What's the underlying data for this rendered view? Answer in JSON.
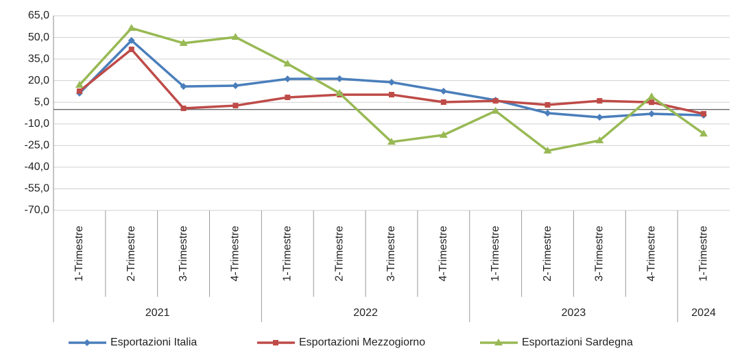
{
  "chart_data": {
    "type": "line",
    "category_groups": [
      {
        "name": "2021",
        "categories": [
          "1-Trimestre",
          "2-Trimestre",
          "3-Trimestre",
          "4-Trimestre"
        ]
      },
      {
        "name": "2022",
        "categories": [
          "1-Trimestre",
          "2-Trimestre",
          "3-Trimestre",
          "4-Trimestre"
        ]
      },
      {
        "name": "2023",
        "categories": [
          "1-Trimestre",
          "2-Trimestre",
          "3-Trimestre",
          "4-Trimestre"
        ]
      },
      {
        "name": "2024",
        "categories": [
          "1-Trimestre"
        ]
      }
    ],
    "series": [
      {
        "name": "Esportazioni Italia",
        "color": "#4a7ebb",
        "marker": "diamond",
        "values": [
          11.3,
          47.9,
          16.0,
          16.5,
          21.2,
          21.3,
          18.9,
          12.7,
          6.5,
          -2.5,
          -5.4,
          -3.0,
          -4.0
        ]
      },
      {
        "name": "Esportazioni Mezzogiorno",
        "color": "#be4b48",
        "marker": "square",
        "values": [
          12.7,
          41.7,
          0.8,
          2.7,
          8.4,
          10.3,
          10.3,
          5.1,
          6.0,
          3.2,
          6.0,
          5.0,
          -3.0
        ]
      },
      {
        "name": "Esportazioni Sardegna",
        "color": "#98b954",
        "marker": "triangle",
        "values": [
          17.0,
          56.4,
          46.0,
          50.2,
          31.7,
          11.3,
          -22.5,
          -17.7,
          -1.0,
          -28.6,
          -21.5,
          8.9,
          -16.8
        ]
      }
    ],
    "ylim": [
      -70,
      65
    ],
    "yticks": [
      {
        "value": 65,
        "label": "65,0"
      },
      {
        "value": 50,
        "label": "50,0"
      },
      {
        "value": 35,
        "label": "35,0"
      },
      {
        "value": 20,
        "label": "20,0"
      },
      {
        "value": 5,
        "label": "5,0"
      },
      {
        "value": -10,
        "label": "-10,0"
      },
      {
        "value": -25,
        "label": "-25,0"
      },
      {
        "value": -40,
        "label": "-40,0"
      },
      {
        "value": -55,
        "label": "-55,0"
      },
      {
        "value": -70,
        "label": "-70,0"
      }
    ],
    "grid": true,
    "legend": "bottom"
  }
}
